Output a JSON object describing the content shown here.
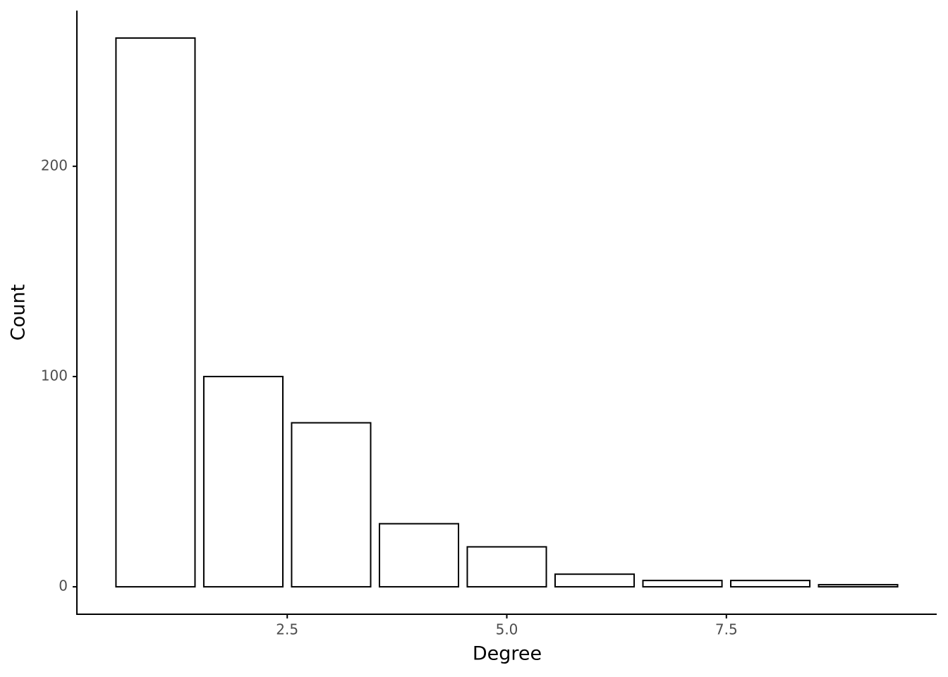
{
  "chart_data": {
    "type": "bar",
    "xlabel": "Degree",
    "ylabel": "Count",
    "x": [
      1,
      2,
      3,
      4,
      5,
      6,
      7,
      8,
      9
    ],
    "values": [
      261,
      100,
      78,
      30,
      19,
      6,
      3,
      3,
      1
    ],
    "color": "#ffffff",
    "xlim": [
      0.105,
      9.895
    ],
    "xticks": [
      2.5,
      {
        "value": 5,
        "label": "5.0"
      },
      7.5
    ],
    "ylim": [
      -13.05,
      274.05
    ],
    "yticks": [
      0,
      100,
      200
    ]
  }
}
